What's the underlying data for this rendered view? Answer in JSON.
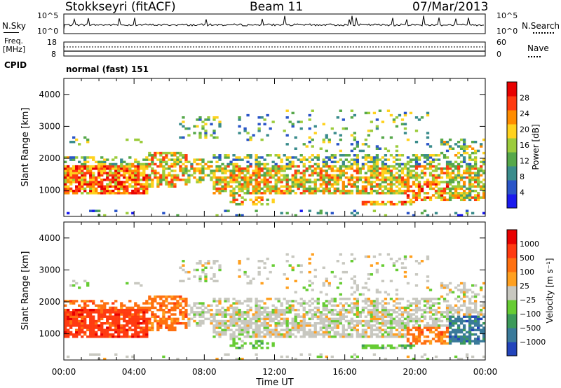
{
  "header": {
    "station": "Stokkseyri (fitACF)",
    "beam": "Beam 11",
    "date": "07/Mar/2013"
  },
  "top_panels": {
    "nsky_label": "N.Sky",
    "nsearch_label": "N.Search",
    "freq_label_1": "Freq.",
    "freq_label_2": "[MHz]",
    "nave_label": "Nave",
    "cpid_label": "CPID",
    "mode_text": "normal (fast) 151",
    "noise_left_ticks": [
      "10^5",
      "10^0"
    ],
    "noise_right_ticks": [
      "10^5",
      "10^0"
    ],
    "freq_left_ticks": [
      "18",
      "8"
    ],
    "nave_right_ticks": [
      "60",
      "0"
    ]
  },
  "chart_data": [
    {
      "type": "heatmap",
      "name": "power",
      "ylabel": "Slant Range [km]",
      "xlabel": "",
      "ylim": [
        180,
        4500
      ],
      "y_ticks": [
        1000,
        2000,
        3000,
        4000
      ],
      "colorbar": {
        "label": "Power [dB]",
        "ticks": [
          4,
          8,
          12,
          16,
          20,
          24,
          28
        ],
        "range": [
          0,
          32
        ],
        "colors": [
          "#1a1aee",
          "#2a55c8",
          "#3a8c8c",
          "#56a84a",
          "#9ccc3c",
          "#ffd21e",
          "#ff8c00",
          "#ff3a10",
          "#e80000"
        ]
      }
    },
    {
      "type": "heatmap",
      "name": "velocity",
      "ylabel": "Slant Range [km]",
      "xlabel": "Time UT",
      "ylim": [
        180,
        4500
      ],
      "y_ticks": [
        1000,
        2000,
        3000,
        4000
      ],
      "x_ticks": [
        "00:00",
        "04:00",
        "08:00",
        "12:00",
        "16:00",
        "20:00",
        "00:00"
      ],
      "colorbar": {
        "label": "Velocity [m s⁻¹]",
        "ticks": [
          "1000",
          "500",
          "100",
          "25",
          "−25",
          "−100",
          "−500",
          "−1000"
        ],
        "colors": [
          "#2244bb",
          "#3a7a9a",
          "#3c9a5a",
          "#66cc33",
          "#c8c8c0",
          "#ffa020",
          "#ff7010",
          "#ff3a10",
          "#e80000"
        ]
      }
    }
  ]
}
